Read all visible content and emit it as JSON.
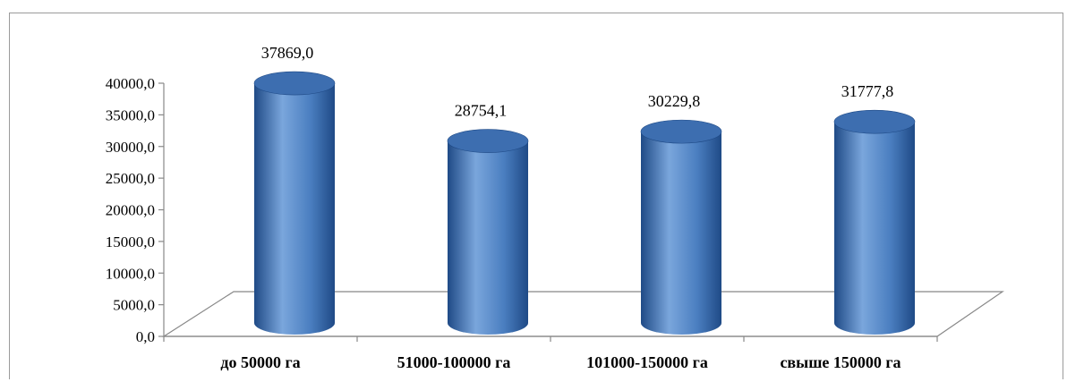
{
  "chart_data": {
    "type": "bar",
    "categories": [
      "до 50000 га",
      "51000-100000 га",
      "101000-150000 га",
      "свыше  150000 га"
    ],
    "values": [
      37869.0,
      28754.1,
      30229.8,
      31777.8
    ],
    "data_labels": [
      "37869,0",
      "28754,1",
      "30229,8",
      "31777,8"
    ],
    "title": "",
    "xlabel": "",
    "ylabel": "",
    "ylim": [
      0,
      40000
    ],
    "yticks": [
      0,
      5000,
      10000,
      15000,
      20000,
      25000,
      30000,
      35000,
      40000
    ],
    "ytick_labels": [
      "0,0",
      "5000,0",
      "10000,0",
      "15000,0",
      "20000,0",
      "25000,0",
      "30000,0",
      "35000,0",
      "40000,0"
    ],
    "grid": false,
    "legend": "none",
    "style": "3d-cylinder",
    "colors": {
      "bar_fill": "#4a7ec0",
      "bar_dark": "#1f4a86",
      "bar_light": "#7aa6dc",
      "bar_top": "#3d6eb0",
      "axis": "#888888"
    }
  }
}
